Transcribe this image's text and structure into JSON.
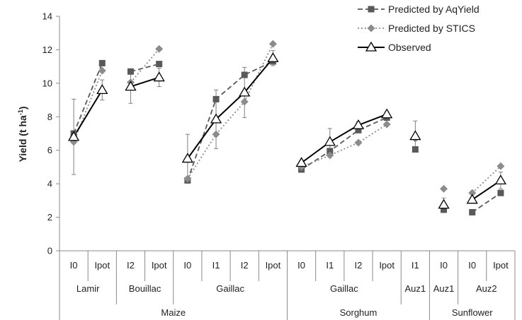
{
  "chart_data": {
    "type": "line",
    "ylabel": "Yield (t ha",
    "ylabel_sup": "-1",
    "ylabel_tail": ")",
    "ylim": [
      0,
      14
    ],
    "yticks": [
      0,
      2,
      4,
      6,
      8,
      10,
      12,
      14
    ],
    "grid": false,
    "legend_position": "top-right",
    "categories": [
      "I0",
      "Ipot",
      "I2",
      "Ipot",
      "I0",
      "I1",
      "I2",
      "Ipot",
      "I0",
      "I1",
      "I2",
      "Ipot",
      "I1",
      "I0",
      "I0",
      "Ipot"
    ],
    "sites": [
      {
        "label": "Lamir",
        "start": 0,
        "end": 1
      },
      {
        "label": "Bouillac",
        "start": 2,
        "end": 3
      },
      {
        "label": "Gaillac",
        "start": 4,
        "end": 7
      },
      {
        "label": "Gaillac",
        "start": 8,
        "end": 11
      },
      {
        "label": "Auz1",
        "start": 12,
        "end": 12
      },
      {
        "label": "Auz1",
        "start": 13,
        "end": 13
      },
      {
        "label": "Auz2",
        "start": 14,
        "end": 15
      }
    ],
    "crops": [
      {
        "label": "Maize",
        "start": 0,
        "end": 7
      },
      {
        "label": "Sorghum",
        "start": 8,
        "end": 12
      },
      {
        "label": "Sunflower",
        "start": 13,
        "end": 15
      }
    ],
    "segments": [
      [
        0,
        1
      ],
      [
        2,
        3
      ],
      [
        4,
        5,
        6,
        7
      ],
      [
        8,
        9,
        10,
        11
      ],
      [
        12
      ],
      [
        13
      ],
      [
        14,
        15
      ]
    ],
    "series": [
      {
        "name": "Predicted by AqYield",
        "marker": "square",
        "dash": "dashed",
        "color": "#595959",
        "values": [
          7.0,
          11.2,
          10.7,
          11.15,
          4.2,
          9.05,
          10.5,
          11.3,
          4.85,
          5.95,
          7.2,
          7.95,
          6.05,
          2.45,
          2.3,
          3.45
        ]
      },
      {
        "name": "Predicted by STICS",
        "marker": "diamond",
        "dash": "dotted",
        "color": "#8c8c8c",
        "values": [
          6.5,
          10.75,
          10.05,
          12.05,
          4.3,
          6.95,
          8.9,
          12.35,
          5.0,
          5.7,
          6.45,
          7.55,
          6.7,
          3.7,
          3.45,
          5.05
        ]
      },
      {
        "name": "Observed",
        "marker": "triangle",
        "dash": "solid",
        "color": "#000000",
        "values": [
          6.8,
          9.6,
          9.8,
          10.35,
          5.5,
          7.85,
          9.45,
          11.5,
          5.25,
          6.5,
          7.5,
          8.15,
          6.85,
          2.75,
          3.05,
          4.2
        ],
        "error": [
          2.25,
          0.6,
          1.0,
          0.55,
          1.45,
          1.75,
          1.5,
          0.45,
          0.15,
          0.8,
          0.2,
          0.15,
          0.9,
          0.4,
          0.15,
          0.5
        ]
      }
    ]
  }
}
